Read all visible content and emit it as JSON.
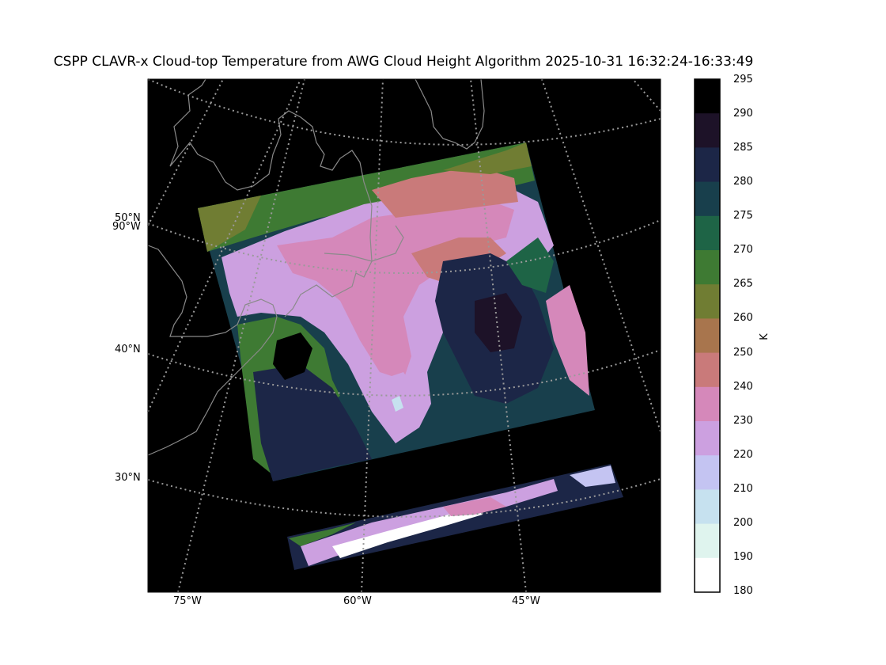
{
  "title": "CSPP CLAVR-x Cloud-top Temperature from AWG Cloud Height Algorithm 2025-10-31 16:32:24-16:33:49",
  "map": {
    "lat_labels": [
      "50°N",
      "90°W",
      "40°N",
      "30°N"
    ],
    "lon_labels": [
      "75°W",
      "60°W",
      "45°W"
    ],
    "graticule_color": "#9a9a9a",
    "coastline_color": "#8a8a8a",
    "background_color": "#000000"
  },
  "colorbar": {
    "unit": "K",
    "ticks": [
      "295",
      "290",
      "285",
      "280",
      "275",
      "270",
      "265",
      "260",
      "250",
      "240",
      "230",
      "220",
      "210",
      "200",
      "190",
      "180"
    ],
    "colors": [
      "#000000",
      "#1d1228",
      "#1c2647",
      "#183f4c",
      "#1e6446",
      "#3e7a33",
      "#707d33",
      "#a8754d",
      "#c97a7a",
      "#d588ba",
      "#cca0e0",
      "#c4c4f2",
      "#c6e1ef",
      "#dff4ee",
      "#ffffff"
    ]
  }
}
